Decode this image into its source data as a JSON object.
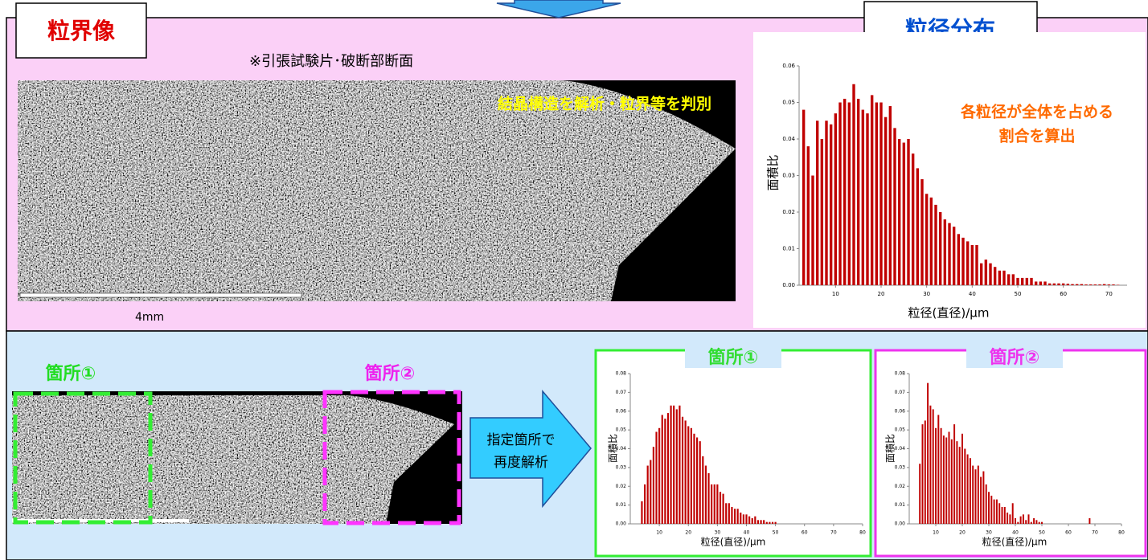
{
  "top_panel": {
    "title": "粒界像",
    "right_title": "粒径分布",
    "caption": "※引張試験片･破断部断面",
    "image_note": "結晶構造を解析・粒界等を判別",
    "scale": "4mm",
    "chart_note": [
      "各粒径が全体を占める",
      "割合を算出"
    ]
  },
  "bottom_panel": {
    "region1": "箇所①",
    "region2": "箇所②",
    "arrow_text": [
      "指定箇所で",
      "再度解析"
    ]
  },
  "chart_data": [
    {
      "type": "bar",
      "xlabel": "粒径(直径)/μm",
      "ylabel": "面積比",
      "color": "#c00000",
      "x": [
        3,
        4,
        5,
        6,
        7,
        8,
        9,
        10,
        11,
        12,
        13,
        14,
        15,
        16,
        17,
        18,
        19,
        20,
        21,
        22,
        23,
        24,
        25,
        26,
        27,
        28,
        29,
        30,
        31,
        32,
        33,
        34,
        35,
        36,
        37,
        38,
        39,
        40,
        41,
        42,
        43,
        44,
        45,
        46,
        47,
        48,
        49,
        50,
        51,
        52,
        53,
        54,
        55,
        56,
        57,
        58,
        59,
        60,
        61,
        62,
        63,
        64,
        65,
        66,
        67,
        68,
        69,
        70,
        71,
        72
      ],
      "values": [
        0.048,
        0.038,
        0.03,
        0.045,
        0.04,
        0.045,
        0.044,
        0.047,
        0.05,
        0.051,
        0.05,
        0.055,
        0.051,
        0.048,
        0.047,
        0.052,
        0.05,
        0.05,
        0.046,
        0.049,
        0.043,
        0.04,
        0.039,
        0.04,
        0.036,
        0.032,
        0.029,
        0.025,
        0.024,
        0.022,
        0.02,
        0.018,
        0.017,
        0.016,
        0.014,
        0.013,
        0.012,
        0.011,
        0.011,
        0.006,
        0.007,
        0.006,
        0.005,
        0.004,
        0.004,
        0.003,
        0.003,
        0.002,
        0.002,
        0.002,
        0.002,
        0.001,
        0.001,
        0.001,
        0.0005,
        0.0005,
        0.0005,
        0.0005,
        0.0004,
        0.0003,
        0.0003,
        0.0003,
        0.0002,
        0.0002,
        0.0002,
        0.0002,
        0.0003,
        0.0002,
        0.0002,
        0.0001
      ],
      "xlim": [
        2,
        74
      ],
      "xticks": [
        10,
        20,
        30,
        40,
        50,
        60,
        70
      ],
      "ylim": [
        0,
        0.06
      ],
      "yticks": [
        {
          "value": 0,
          "label": "0.00"
        },
        {
          "value": 0.01,
          "label": "0.01"
        },
        {
          "value": 0.02,
          "label": "0.02"
        },
        {
          "value": 0.03,
          "label": "0.03"
        },
        {
          "value": 0.04,
          "label": "0.04"
        },
        {
          "value": 0.05,
          "label": "0.05"
        },
        {
          "value": 0.06,
          "label": "0.06"
        }
      ]
    },
    {
      "type": "bar",
      "title": "箇所①",
      "xlabel": "粒径(直径)/μm",
      "ylabel": "面積比",
      "color": "#c00000",
      "frame": "#33dd33",
      "x": [
        4,
        5,
        6,
        7,
        8,
        9,
        10,
        11,
        12,
        13,
        14,
        15,
        16,
        17,
        18,
        19,
        20,
        21,
        22,
        23,
        24,
        25,
        26,
        27,
        28,
        29,
        30,
        31,
        32,
        33,
        34,
        35,
        36,
        37,
        38,
        39,
        40,
        41,
        42,
        43,
        44,
        45,
        46,
        47,
        48,
        49,
        50
      ],
      "values": [
        0.012,
        0.021,
        0.031,
        0.034,
        0.041,
        0.049,
        0.051,
        0.058,
        0.056,
        0.059,
        0.063,
        0.063,
        0.061,
        0.063,
        0.057,
        0.055,
        0.052,
        0.051,
        0.048,
        0.046,
        0.044,
        0.036,
        0.031,
        0.027,
        0.021,
        0.021,
        0.021,
        0.017,
        0.016,
        0.011,
        0.011,
        0.009,
        0.008,
        0.008,
        0.006,
        0.005,
        0.005,
        0.004,
        0.003,
        0.004,
        0.002,
        0.002,
        0.002,
        0.001,
        0.001,
        0.001,
        0.001
      ],
      "xlim": [
        0,
        80
      ],
      "xticks": [
        10,
        20,
        30,
        40,
        50,
        60,
        70,
        80
      ],
      "ylim": [
        0,
        0.08
      ],
      "yticks": [
        {
          "value": 0,
          "label": "0.00"
        },
        {
          "value": 0.01,
          "label": "0.01"
        },
        {
          "value": 0.02,
          "label": "0.02"
        },
        {
          "value": 0.03,
          "label": "0.03"
        },
        {
          "value": 0.04,
          "label": "0.04"
        },
        {
          "value": 0.05,
          "label": "0.05"
        },
        {
          "value": 0.06,
          "label": "0.06"
        },
        {
          "value": 0.07,
          "label": "0.07"
        },
        {
          "value": 0.08,
          "label": "0.08"
        }
      ]
    },
    {
      "type": "bar",
      "title": "箇所②",
      "xlabel": "粒径(直径)/μm",
      "ylabel": "面積比",
      "color": "#c00000",
      "frame": "#ee33ee",
      "x": [
        4,
        5,
        6,
        7,
        8,
        9,
        10,
        11,
        12,
        13,
        14,
        15,
        16,
        17,
        18,
        19,
        20,
        21,
        22,
        23,
        24,
        25,
        26,
        27,
        28,
        29,
        30,
        31,
        32,
        33,
        34,
        35,
        36,
        37,
        38,
        39,
        40,
        41,
        42,
        43,
        44,
        45,
        46,
        47,
        48,
        49,
        50,
        68
      ],
      "values": [
        0.032,
        0.053,
        0.055,
        0.075,
        0.063,
        0.061,
        0.051,
        0.058,
        0.051,
        0.047,
        0.046,
        0.049,
        0.045,
        0.053,
        0.044,
        0.041,
        0.048,
        0.04,
        0.037,
        0.035,
        0.031,
        0.029,
        0.031,
        0.025,
        0.028,
        0.021,
        0.017,
        0.015,
        0.013,
        0.013,
        0.011,
        0.009,
        0.009,
        0.006,
        0.005,
        0.011,
        0.003,
        0.001,
        0.004,
        0.005,
        0.002,
        0.005,
        0.001,
        0.003,
        0.002,
        0.001,
        0.001,
        0.003
      ],
      "xlim": [
        0,
        80
      ],
      "xticks": [
        10,
        20,
        30,
        40,
        50,
        60,
        70,
        80
      ],
      "ylim": [
        0,
        0.08
      ],
      "yticks": [
        {
          "value": 0,
          "label": "0.00"
        },
        {
          "value": 0.01,
          "label": "0.01"
        },
        {
          "value": 0.02,
          "label": "0.02"
        },
        {
          "value": 0.03,
          "label": "0.03"
        },
        {
          "value": 0.04,
          "label": "0.04"
        },
        {
          "value": 0.05,
          "label": "0.05"
        },
        {
          "value": 0.06,
          "label": "0.06"
        },
        {
          "value": 0.07,
          "label": "0.07"
        },
        {
          "value": 0.08,
          "label": "0.08"
        }
      ]
    }
  ]
}
